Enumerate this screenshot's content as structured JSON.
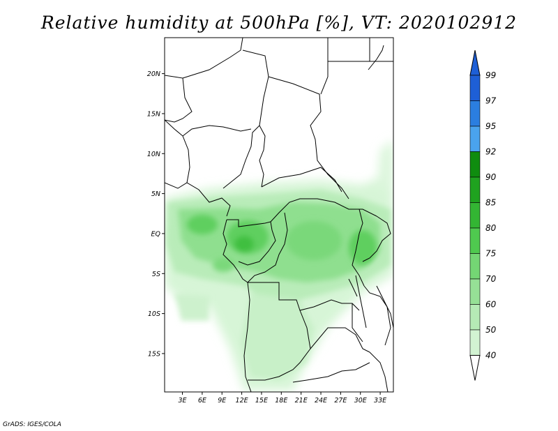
{
  "title": "Relative humidity at 500hPa [%], VT: 2020102912",
  "credit": "GrADS: IGES/COLA",
  "map": {
    "lat_ticks": [
      {
        "lat": 20,
        "label": "20N"
      },
      {
        "lat": 15,
        "label": "15N"
      },
      {
        "lat": 10,
        "label": "10N"
      },
      {
        "lat": 5,
        "label": "5N"
      },
      {
        "lat": 0,
        "label": "EQ"
      },
      {
        "lat": -5,
        "label": "5S"
      },
      {
        "lat": -10,
        "label": "10S"
      },
      {
        "lat": -15,
        "label": "15S"
      }
    ],
    "lon_ticks": [
      {
        "lon": 3,
        "label": "3E"
      },
      {
        "lon": 6,
        "label": "6E"
      },
      {
        "lon": 9,
        "label": "9E"
      },
      {
        "lon": 12,
        "label": "12E"
      },
      {
        "lon": 15,
        "label": "15E"
      },
      {
        "lon": 18,
        "label": "18E"
      },
      {
        "lon": 21,
        "label": "21E"
      },
      {
        "lon": 24,
        "label": "24E"
      },
      {
        "lon": 27,
        "label": "27E"
      },
      {
        "lon": 30,
        "label": "30E"
      },
      {
        "lon": 33,
        "label": "33E"
      }
    ],
    "lon_range": [
      0.3,
      35
    ],
    "lat_range": [
      -19.8,
      24.5
    ]
  },
  "colorbar": {
    "levels": [
      "99",
      "97",
      "95",
      "92",
      "90",
      "85",
      "80",
      "75",
      "70",
      "60",
      "50",
      "40"
    ],
    "colors": [
      "#1e5fd6",
      "#2b7ee0",
      "#4aa3ee",
      "#0f8c0f",
      "#1fa21f",
      "#33b533",
      "#4fc94f",
      "#74d674",
      "#96e096",
      "#b5eab5",
      "#d2f3d2",
      "#ebfaeb"
    ],
    "top_arrow_color": "#1e5fd6",
    "bottom_arrow_color": "#ffffff"
  }
}
